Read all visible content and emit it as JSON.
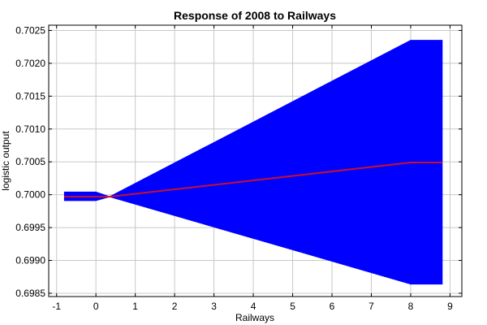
{
  "chart_data": {
    "type": "area",
    "title": "Response of 2008 to Railways",
    "xlabel": "Railways",
    "ylabel": "logistic output",
    "xlim": [
      -1.2,
      9.3
    ],
    "ylim": [
      0.69845,
      0.70258
    ],
    "xticks": [
      -1,
      0,
      1,
      2,
      3,
      4,
      5,
      6,
      7,
      8,
      9
    ],
    "yticks": [
      0.6985,
      0.699,
      0.6995,
      0.7,
      0.7005,
      0.701,
      0.7015,
      0.702,
      0.7025
    ],
    "ytick_labels": [
      "0.6985",
      "0.6990",
      "0.6995",
      "0.7000",
      "0.7005",
      "0.7010",
      "0.7015",
      "0.7020",
      "0.7025"
    ],
    "grid": true,
    "colors": {
      "band": "#0000ff",
      "line": "#c8102e"
    },
    "series": [
      {
        "role": "band",
        "x": [
          -0.8,
          0,
          0.35,
          8,
          8.8
        ],
        "lower": [
          0.69991,
          0.69991,
          0.69997,
          0.69864,
          0.69864
        ],
        "upper": [
          0.70004,
          0.70004,
          0.69997,
          0.70235,
          0.70235
        ]
      },
      {
        "role": "line",
        "x": [
          -0.8,
          0,
          0.35,
          8,
          8.8
        ],
        "y": [
          0.69997,
          0.69997,
          0.69997,
          0.70049,
          0.70049
        ]
      }
    ]
  }
}
